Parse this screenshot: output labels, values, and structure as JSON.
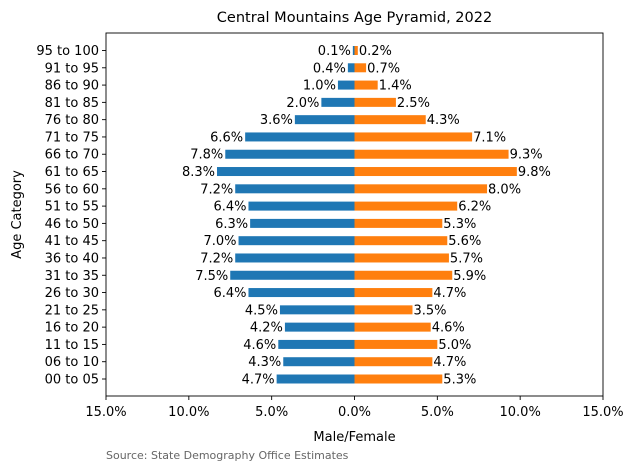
{
  "chart_data": {
    "type": "bar",
    "orientation": "horizontal",
    "title": "Central Mountains Age Pyramid, 2022",
    "xlabel": "Male/Female",
    "ylabel": "Age Category",
    "source": "Source: State Demography Office Estimates",
    "xlim": [
      -15,
      15
    ],
    "xticks": [
      -15,
      -10,
      -5,
      0,
      5,
      10,
      15
    ],
    "xtick_labels": [
      "15.0%",
      "10.0%",
      "5.0%",
      "0.0%",
      "5.0%",
      "10.0%",
      "15.0%"
    ],
    "grid": false,
    "legend": "none",
    "categories": [
      "00 to 05",
      "06 to 10",
      "11 to 15",
      "16 to 20",
      "21 to 25",
      "26 to 30",
      "31 to 35",
      "36 to 40",
      "41 to 45",
      "46 to 50",
      "51 to 55",
      "56 to 60",
      "61 to 65",
      "66 to 70",
      "71 to 75",
      "76 to 80",
      "81 to 85",
      "86 to 90",
      "91 to 95",
      "95 to 100"
    ],
    "series": [
      {
        "color": "#1f77b4",
        "side": "left",
        "values": [
          4.7,
          4.3,
          4.6,
          4.2,
          4.5,
          6.4,
          7.5,
          7.2,
          7.0,
          6.3,
          6.4,
          7.2,
          8.3,
          7.8,
          6.6,
          3.6,
          2.0,
          1.0,
          0.4,
          0.1
        ],
        "labels": [
          "4.7%",
          "4.3%",
          "4.6%",
          "4.2%",
          "4.5%",
          "6.4%",
          "7.5%",
          "7.2%",
          "7.0%",
          "6.3%",
          "6.4%",
          "7.2%",
          "8.3%",
          "7.8%",
          "6.6%",
          "3.6%",
          "2.0%",
          "1.0%",
          "0.4%",
          "0.1%"
        ]
      },
      {
        "color": "#ff7f0e",
        "side": "right",
        "values": [
          5.3,
          4.7,
          5.0,
          4.6,
          3.5,
          4.7,
          5.9,
          5.7,
          5.6,
          5.3,
          6.2,
          8.0,
          9.8,
          9.3,
          7.1,
          4.3,
          2.5,
          1.4,
          0.7,
          0.2
        ],
        "labels": [
          "5.3%",
          "4.7%",
          "5.0%",
          "4.6%",
          "3.5%",
          "4.7%",
          "5.9%",
          "5.7%",
          "5.6%",
          "5.3%",
          "6.2%",
          "8.0%",
          "9.8%",
          "9.3%",
          "7.1%",
          "4.3%",
          "2.5%",
          "1.4%",
          "0.7%",
          "0.2%"
        ]
      }
    ]
  }
}
